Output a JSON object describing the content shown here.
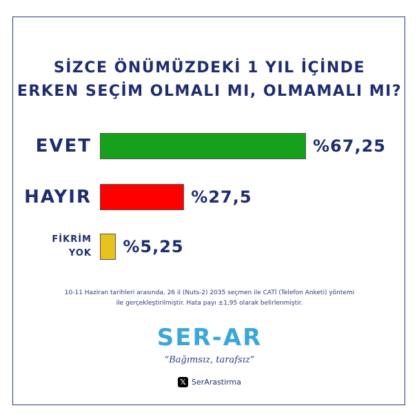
{
  "chart_data": {
    "type": "bar",
    "orientation": "horizontal",
    "title_lines": [
      "SİZCE ÖNÜMÜZDEKİ 1 YIL İÇİNDE",
      "ERKEN SEÇİM OLMALI MI, OLMAMALI MI?"
    ],
    "categories": [
      "EVET",
      "HAYIR",
      "FİKRİM YOK"
    ],
    "category_lines": [
      [
        "EVET"
      ],
      [
        "HAYIR"
      ],
      [
        "FİKRİM",
        "YOK"
      ]
    ],
    "values": [
      67.25,
      27.5,
      5.25
    ],
    "value_labels": [
      "%67,25",
      "%27,5",
      "%5,25"
    ],
    "colors": [
      "#16a01c",
      "#ff0000",
      "#e6c21a"
    ],
    "xlim": [
      0,
      67.25
    ],
    "grid": false,
    "legend": "none"
  },
  "footnote_lines": [
    "10-11 Haziran tarihleri arasında, 26 il (Nuts-2) 2035 seçmen ile CATİ (Telefon Anketi) yöntemi",
    "ile gerçekleştirilmiştir. Hata payı ±1,95 olarak belirlenmiştir."
  ],
  "brand": {
    "logo": "SER-AR",
    "slogan": "“Bağımsız, tarafsız”",
    "social_icon": "x-logo-icon",
    "social_handle": "SerArastirma"
  }
}
